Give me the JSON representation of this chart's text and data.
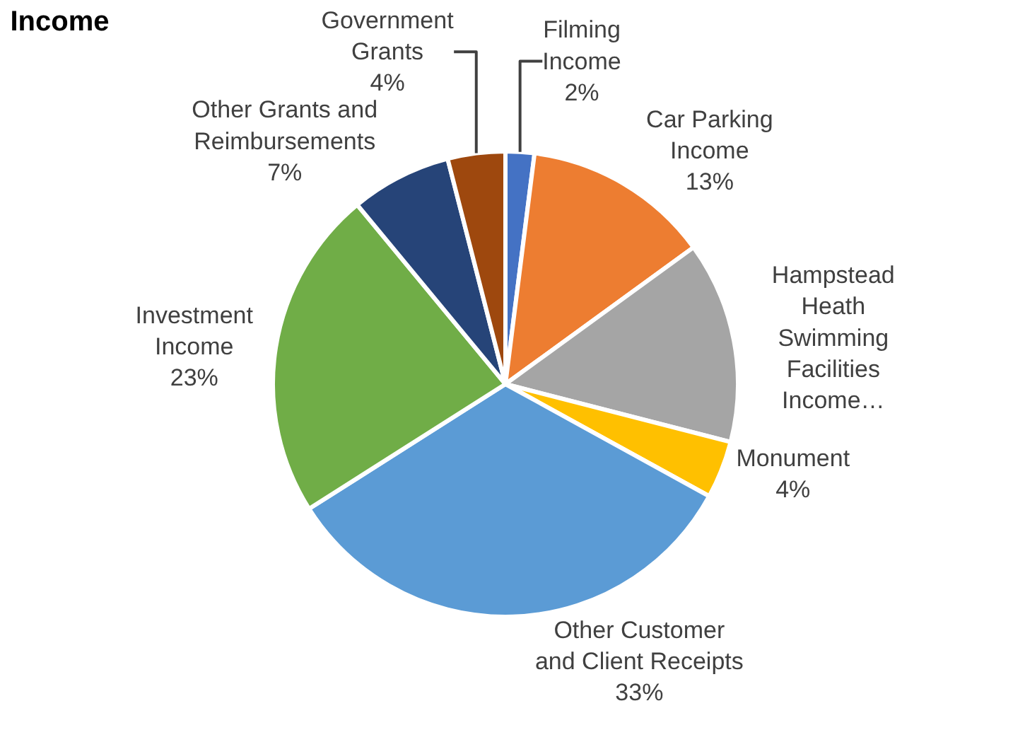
{
  "chart_data": {
    "type": "pie",
    "title": "Income",
    "categories": [
      "Filming\nIncome",
      "Car Parking\nIncome",
      "Hampstead\nHeath\nSwimming\nFacilities\nIncome…",
      "Monument",
      "Other Customer\nand Client Receipts",
      "Investment\nIncome",
      "Other Grants and\nReimbursements",
      "Government\nGrants"
    ],
    "values": [
      2,
      13,
      14,
      4,
      33,
      23,
      7,
      4
    ],
    "value_labels": [
      "2%",
      "13%",
      null,
      "4%",
      "33%",
      "23%",
      "7%",
      "4%"
    ],
    "colors": [
      "#4472c4",
      "#ed7d31",
      "#a5a5a5",
      "#ffc000",
      "#5b9bd5",
      "#70ad47",
      "#264478",
      "#9e480e"
    ],
    "legend": false
  }
}
